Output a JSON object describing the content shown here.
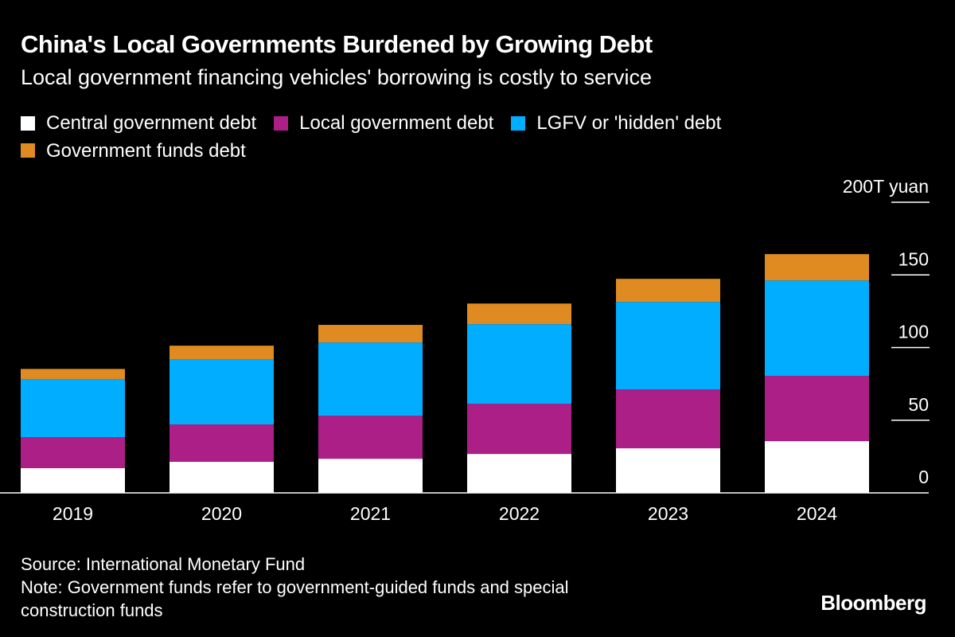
{
  "title": "China's Local Governments Burdened by Growing Debt",
  "subtitle": "Local government financing vehicles' borrowing is costly to service",
  "source": "Source: International Monetary Fund",
  "note_line1": "Note: Government funds refer to government-guided funds and special",
  "note_line2": "construction funds",
  "logo": "Bloomberg",
  "chart_data": {
    "type": "bar",
    "stacked": true,
    "categories": [
      "2019",
      "2020",
      "2021",
      "2022",
      "2023",
      "2024"
    ],
    "series": [
      {
        "name": "Central government debt",
        "color": "#ffffff",
        "values": [
          17,
          21.4,
          23.5,
          26.8,
          30.7,
          35.6
        ]
      },
      {
        "name": "Local government debt",
        "color": "#ac1f87",
        "values": [
          21.3,
          25.7,
          29.6,
          34.5,
          40.5,
          44.9
        ]
      },
      {
        "name": "LGFV or 'hidden' debt",
        "color": "#00adff",
        "values": [
          40,
          44.9,
          50.4,
          54.8,
          60.2,
          65.7
        ]
      },
      {
        "name": "Government funds debt",
        "color": "#e08a22",
        "values": [
          7,
          9.3,
          12.1,
          14.2,
          15.9,
          18.1
        ]
      }
    ],
    "yticks": [
      "0",
      "50",
      "100",
      "150",
      "200T yuan"
    ],
    "ytick_values": [
      0,
      50,
      100,
      150,
      200
    ],
    "ylim": [
      0,
      200
    ],
    "yaxis_position": "right",
    "legend_position": "top"
  }
}
